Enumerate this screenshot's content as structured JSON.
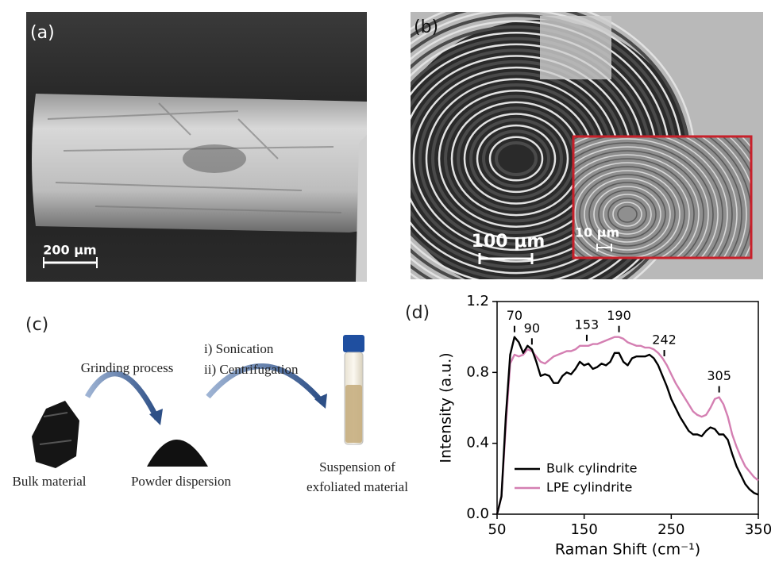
{
  "panel_labels": [
    "(a)",
    "(b)",
    "(c)",
    "(d)"
  ],
  "panel_a": {
    "scale_bar": "200 μm"
  },
  "panel_b": {
    "scale_bar": "100 μm",
    "inset_scale_bar": "10 μm"
  },
  "panel_c": {
    "step_1": "Grinding process",
    "step_2_line_1": "i) Sonication",
    "step_2_line_2": "ii) Centrifugation",
    "stage_1": "Bulk material",
    "stage_2": "Powder dispersion",
    "stage_3_line_1": "Suspension of",
    "stage_3_line_2": "exfoliated material"
  },
  "chart_data": {
    "type": "line",
    "x_label": "Raman Shift (cm⁻¹)",
    "y_label": "Intensity (a.u.)",
    "x": [
      50,
      55,
      60,
      65,
      70,
      75,
      80,
      85,
      90,
      95,
      100,
      105,
      110,
      115,
      120,
      125,
      130,
      135,
      140,
      145,
      150,
      155,
      160,
      165,
      170,
      175,
      180,
      185,
      190,
      195,
      200,
      205,
      210,
      215,
      220,
      225,
      230,
      235,
      240,
      245,
      250,
      255,
      260,
      265,
      270,
      275,
      280,
      285,
      290,
      295,
      300,
      305,
      310,
      315,
      320,
      325,
      330,
      335,
      340,
      345,
      350
    ],
    "series": [
      {
        "name": "Bulk cylindrite",
        "color": "#000000",
        "values": [
          0,
          0.1,
          0.55,
          0.9,
          1.0,
          0.97,
          0.91,
          0.95,
          0.93,
          0.86,
          0.78,
          0.79,
          0.78,
          0.74,
          0.74,
          0.78,
          0.8,
          0.79,
          0.82,
          0.86,
          0.84,
          0.85,
          0.82,
          0.83,
          0.85,
          0.84,
          0.86,
          0.91,
          0.91,
          0.86,
          0.84,
          0.88,
          0.89,
          0.89,
          0.89,
          0.9,
          0.88,
          0.84,
          0.78,
          0.72,
          0.65,
          0.6,
          0.55,
          0.51,
          0.47,
          0.45,
          0.45,
          0.44,
          0.47,
          0.49,
          0.48,
          0.45,
          0.45,
          0.42,
          0.34,
          0.27,
          0.22,
          0.17,
          0.14,
          0.12,
          0.11
        ]
      },
      {
        "name": "LPE cylindrite",
        "color": "#d47fb2",
        "values": [
          0,
          0.1,
          0.5,
          0.85,
          0.9,
          0.89,
          0.9,
          0.93,
          0.92,
          0.89,
          0.86,
          0.85,
          0.87,
          0.89,
          0.9,
          0.91,
          0.92,
          0.92,
          0.93,
          0.95,
          0.95,
          0.95,
          0.96,
          0.96,
          0.97,
          0.98,
          0.99,
          1.0,
          1.0,
          0.99,
          0.97,
          0.96,
          0.95,
          0.95,
          0.94,
          0.94,
          0.93,
          0.91,
          0.88,
          0.84,
          0.79,
          0.74,
          0.7,
          0.66,
          0.62,
          0.58,
          0.56,
          0.55,
          0.56,
          0.6,
          0.65,
          0.66,
          0.62,
          0.55,
          0.45,
          0.38,
          0.32,
          0.27,
          0.24,
          0.21,
          0.19
        ]
      }
    ],
    "peaks": [
      70,
      90,
      153,
      190,
      242,
      305
    ],
    "xlim": [
      50,
      350
    ],
    "xticks": [
      50,
      150,
      250,
      350
    ],
    "ylim": [
      0,
      1.2
    ],
    "yticks": [
      {
        "value": 0,
        "label": "0.0"
      },
      0.4,
      0.8,
      1.2
    ],
    "grid": false,
    "legend": "lower left"
  }
}
